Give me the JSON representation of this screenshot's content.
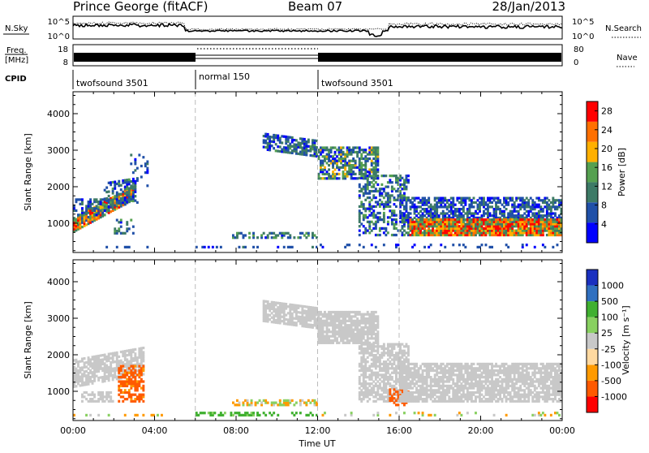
{
  "header": {
    "station": "Prince George (fitACF)",
    "beam": "Beam 07",
    "date": "28/Jan/2013"
  },
  "top_panel": {
    "nsky_label": "N.Sky",
    "nsky_top": "10^5",
    "nsky_bottom": "10^0",
    "nsearch_label": "N.Search",
    "nsearch_top": "10^5",
    "nsearch_bottom": "10^0",
    "freq_label_1": "Freq.",
    "freq_label_2": "[MHz]",
    "freq_top": "18",
    "freq_bottom": "8",
    "nave_label": "Nave",
    "nave_top": "80",
    "nave_bottom": "0",
    "cpid_label": "CPID",
    "cpid_segments": [
      {
        "label": "twofsound 3501",
        "start": 0,
        "end": 6
      },
      {
        "label": "normal 150",
        "start": 6,
        "end": 12
      },
      {
        "label": "twofsound 3501",
        "start": 12,
        "end": 24
      }
    ]
  },
  "chart_data": [
    {
      "type": "heatmap",
      "title": "Power",
      "xlabel": "Time UT",
      "ylabel": "Slant Range [km]",
      "x_ticks": [
        "00:00",
        "04:00",
        "08:00",
        "12:00",
        "16:00",
        "20:00",
        "00:00"
      ],
      "xlim": [
        0,
        24
      ],
      "y_ticks": [
        1000,
        2000,
        3000,
        4000
      ],
      "ylim": [
        200,
        4600
      ],
      "colorbar_label": "Power [dB]",
      "colorbar_ticks": [
        4,
        8,
        12,
        16,
        20,
        24,
        28
      ],
      "colors": [
        "#0000ff",
        "#2050a8",
        "#3d7a66",
        "#55a050",
        "#ffb000",
        "#ff7000",
        "#ff0000"
      ],
      "value_range": [
        0,
        30
      ],
      "regions": [
        {
          "t0": 0.0,
          "t1": 3.0,
          "r0": 750,
          "r1": 1150,
          "slope": 900,
          "v": [
            6,
            30
          ],
          "d": 0.9
        },
        {
          "t0": 0.0,
          "t1": 1.8,
          "r0": 1200,
          "r1": 1700,
          "slope": 0,
          "v": [
            2,
            12
          ],
          "d": 0.4
        },
        {
          "t0": 1.5,
          "t1": 3.2,
          "r0": 1400,
          "r1": 2100,
          "slope": 150,
          "v": [
            2,
            14
          ],
          "d": 0.5
        },
        {
          "t0": 2.0,
          "t1": 3.0,
          "r0": 700,
          "r1": 1100,
          "slope": 0,
          "v": [
            2,
            14
          ],
          "d": 0.4
        },
        {
          "t0": 2.8,
          "t1": 3.7,
          "r0": 2000,
          "r1": 2900,
          "slope": 0,
          "v": [
            2,
            12
          ],
          "d": 0.15
        },
        {
          "t0": 0.0,
          "t1": 4.5,
          "r0": 200,
          "r1": 400,
          "slope": 0,
          "v": [
            2,
            8
          ],
          "d": 0.1
        },
        {
          "t0": 6.0,
          "t1": 12.0,
          "r0": 200,
          "r1": 400,
          "slope": 0,
          "v": [
            2,
            10
          ],
          "d": 0.3
        },
        {
          "t0": 7.8,
          "t1": 12.0,
          "r0": 580,
          "r1": 780,
          "slope": 0,
          "v": [
            4,
            16
          ],
          "d": 0.45
        },
        {
          "t0": 9.3,
          "t1": 12.0,
          "r0": 3000,
          "r1": 3450,
          "slope": -200,
          "v": [
            2,
            14
          ],
          "d": 0.65
        },
        {
          "t0": 12.0,
          "t1": 15.0,
          "r0": 2200,
          "r1": 3100,
          "slope": 0,
          "v": [
            2,
            18
          ],
          "d": 0.7
        },
        {
          "t0": 14.0,
          "t1": 16.5,
          "r0": 650,
          "r1": 2300,
          "slope": 0,
          "v": [
            2,
            16
          ],
          "d": 0.45
        },
        {
          "t0": 16.0,
          "t1": 24.0,
          "r0": 1000,
          "r1": 1700,
          "slope": 0,
          "v": [
            2,
            12
          ],
          "d": 0.65
        },
        {
          "t0": 16.5,
          "t1": 24.0,
          "r0": 650,
          "r1": 1100,
          "slope": 0,
          "v": [
            10,
            30
          ],
          "d": 0.95
        },
        {
          "t0": 12.0,
          "t1": 24.0,
          "r0": 200,
          "r1": 450,
          "slope": 0,
          "v": [
            2,
            8
          ],
          "d": 0.15
        }
      ]
    },
    {
      "type": "heatmap",
      "title": "Velocity",
      "xlabel": "Time UT",
      "ylabel": "Slant Range [km]",
      "x_ticks": [
        "00:00",
        "04:00",
        "08:00",
        "12:00",
        "16:00",
        "20:00",
        "00:00"
      ],
      "xlim": [
        0,
        24
      ],
      "y_ticks": [
        1000,
        2000,
        3000,
        4000
      ],
      "ylim": [
        200,
        4600
      ],
      "colorbar_label": "Velocity [m s⁻¹]",
      "colorbar_ticks": [
        "1000",
        "500",
        "100",
        "25",
        "-25",
        "-100",
        "-500",
        "-1000"
      ],
      "colors": [
        "#ff0000",
        "#ff5a00",
        "#ff9a00",
        "#ffd9a0",
        "#c8c8c8",
        "#88d060",
        "#40b030",
        "#3070c0",
        "#1a30c0"
      ],
      "value_range": [
        -1000,
        1000
      ],
      "regions": [
        {
          "t0": 0.0,
          "t1": 3.5,
          "r0": 1100,
          "r1": 1900,
          "slope": 350,
          "v": [
            -25,
            25
          ],
          "d": 0.75
        },
        {
          "t0": 0.3,
          "t1": 2.0,
          "r0": 700,
          "r1": 1000,
          "slope": 0,
          "v": [
            -25,
            25
          ],
          "d": 0.55
        },
        {
          "t0": 2.2,
          "t1": 3.5,
          "r0": 700,
          "r1": 1700,
          "slope": 0,
          "v": [
            -500,
            -25
          ],
          "d": 0.6
        },
        {
          "t0": 0.0,
          "t1": 4.5,
          "r0": 200,
          "r1": 400,
          "slope": 0,
          "v": [
            -100,
            100
          ],
          "d": 0.3
        },
        {
          "t0": 6.0,
          "t1": 12.0,
          "r0": 200,
          "r1": 420,
          "slope": 0,
          "v": [
            25,
            500
          ],
          "d": 0.45
        },
        {
          "t0": 7.8,
          "t1": 12.0,
          "r0": 600,
          "r1": 780,
          "slope": 0,
          "v": [
            -100,
            100
          ],
          "d": 0.55
        },
        {
          "t0": 9.3,
          "t1": 12.0,
          "r0": 2900,
          "r1": 3500,
          "slope": -200,
          "v": [
            -25,
            25
          ],
          "d": 0.85
        },
        {
          "t0": 12.0,
          "t1": 15.0,
          "r0": 2300,
          "r1": 3200,
          "slope": 0,
          "v": [
            -25,
            25
          ],
          "d": 0.85
        },
        {
          "t0": 14.0,
          "t1": 16.5,
          "r0": 700,
          "r1": 2300,
          "slope": 0,
          "v": [
            -25,
            25
          ],
          "d": 0.7
        },
        {
          "t0": 15.5,
          "t1": 16.5,
          "r0": 600,
          "r1": 1100,
          "slope": 0,
          "v": [
            -500,
            -25
          ],
          "d": 0.5
        },
        {
          "t0": 16.0,
          "t1": 24.0,
          "r0": 700,
          "r1": 1800,
          "slope": 0,
          "v": [
            -25,
            25
          ],
          "d": 0.8
        },
        {
          "t0": 12.0,
          "t1": 24.0,
          "r0": 200,
          "r1": 450,
          "slope": 0,
          "v": [
            -100,
            100
          ],
          "d": 0.15
        }
      ]
    }
  ]
}
